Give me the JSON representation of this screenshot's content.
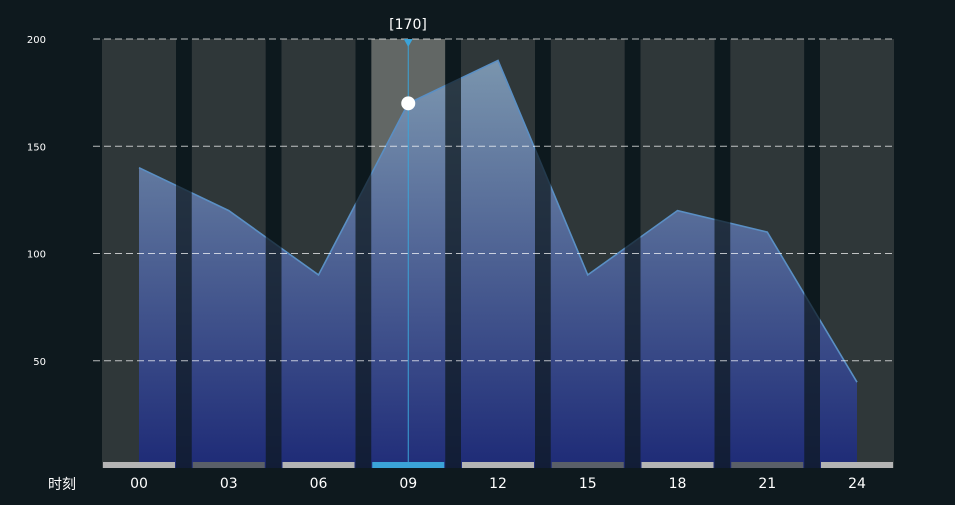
{
  "chart_data": {
    "type": "area",
    "title": "",
    "xlabel": "时刻",
    "ylabel": "",
    "categories": [
      "00",
      "03",
      "06",
      "09",
      "12",
      "15",
      "18",
      "21",
      "24"
    ],
    "series": [
      {
        "values": [
          140,
          120,
          90,
          170,
          190,
          90,
          120,
          110,
          40
        ]
      }
    ],
    "y_ticks": [
      "200",
      "150",
      "100",
      "50"
    ],
    "ylim": [
      0,
      200
    ],
    "grid": "horizontal-dashed",
    "highlight": {
      "category": "09",
      "value": 170,
      "tooltip": "[170]"
    },
    "colors": {
      "background": "#0e191e",
      "band": "#2f3739",
      "band_highlight": "#626765",
      "line": "#5a8fc4",
      "fill_top": "#7e9ab4",
      "fill_bottom": "#1d2a7a",
      "pointer": "#3ba3d8",
      "marker": "#ffffff",
      "axis_text": "#ffffff",
      "tick_bar": "#b4b4b4",
      "tick_bar_alt": "#5a5f68",
      "tick_bar_active": "#3ba3d8"
    }
  }
}
